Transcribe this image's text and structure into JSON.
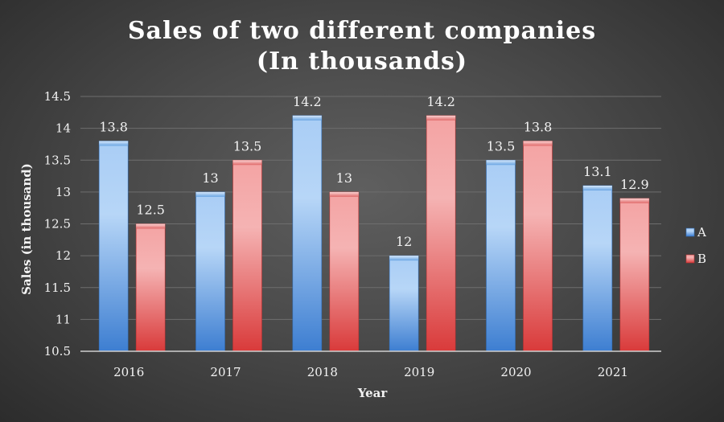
{
  "chart_data": {
    "type": "bar",
    "title_lines": [
      "Sales of two different companies",
      "(In thousands)"
    ],
    "xlabel": "Year",
    "ylabel": "Sales (in thousand)",
    "categories": [
      "2016",
      "2017",
      "2018",
      "2019",
      "2020",
      "2021"
    ],
    "series": [
      {
        "name": "A",
        "values": [
          13.8,
          13,
          14.2,
          12,
          13.5,
          13.1
        ],
        "color": "#5b9bd5"
      },
      {
        "name": "B",
        "values": [
          12.5,
          13.5,
          13,
          14.2,
          13.8,
          12.9
        ],
        "color": "#e85c5c"
      }
    ],
    "data_labels": [
      [
        "13.8",
        "13",
        "14.2",
        "12",
        "13.5",
        "13.1"
      ],
      [
        "12.5",
        "13.5",
        "13",
        "14.2",
        "13.8",
        "12.9"
      ]
    ],
    "ylim": [
      10.5,
      14.5
    ],
    "yticks": [
      "10.5",
      "11",
      "11.5",
      "12",
      "12.5",
      "13",
      "13.5",
      "14",
      "14.5"
    ],
    "grid": true,
    "legend_position": "right"
  }
}
